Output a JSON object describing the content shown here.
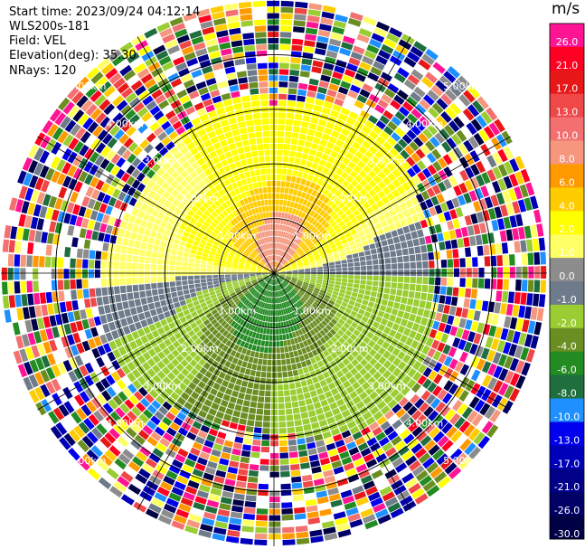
{
  "header": {
    "start_time": "Start time: 2023/09/24 04:12:14",
    "instrument": "WLS200s-181",
    "field": "Field: VEL",
    "elevation": "Elevation(deg): 35.30",
    "nrays": "NRays: 120"
  },
  "colorbar": {
    "unit": "m/s",
    "levels": [
      {
        "label": "26.0",
        "color": "#ff1493"
      },
      {
        "label": "21.0",
        "color": "#ff0022"
      },
      {
        "label": "17.0",
        "color": "#e81818"
      },
      {
        "label": "13.0",
        "color": "#f04848"
      },
      {
        "label": "10.0",
        "color": "#f47070"
      },
      {
        "label": "8.0",
        "color": "#f5967d"
      },
      {
        "label": "6.0",
        "color": "#ff9900"
      },
      {
        "label": "4.0",
        "color": "#ffcc00"
      },
      {
        "label": "2.0",
        "color": "#ffff00"
      },
      {
        "label": "1.0",
        "color": "#ffff66"
      },
      {
        "label": "0.0",
        "color": "#8c8c8c"
      },
      {
        "label": "-1.0",
        "color": "#6e7b8b"
      },
      {
        "label": "-2.0",
        "color": "#9acd32"
      },
      {
        "label": "-4.0",
        "color": "#6b8e23"
      },
      {
        "label": "-6.0",
        "color": "#228b22"
      },
      {
        "label": "-8.0",
        "color": "#1e6e3e"
      },
      {
        "label": "-10.0",
        "color": "#1e90ff"
      },
      {
        "label": "-13.0",
        "color": "#0000ee"
      },
      {
        "label": "-17.0",
        "color": "#0000bb"
      },
      {
        "label": "-21.0",
        "color": "#000088"
      },
      {
        "label": "-26.0",
        "color": "#000066"
      },
      {
        "label": "-30.0",
        "color": "#000044"
      }
    ]
  },
  "chart_data": {
    "type": "heatmap",
    "projection": "polar PPI",
    "field": "VEL",
    "n_rays": 120,
    "range_rings_km": [
      1.0,
      2.0,
      3.0,
      4.0
    ],
    "ring_labels": [
      "1.00km",
      "2.00km",
      "3.00km",
      "4.00km",
      "5.00km"
    ],
    "max_range_km": 5.0,
    "azimuth_spokes_deg": [
      0,
      30,
      60,
      90,
      120,
      150,
      180,
      210,
      240,
      270,
      300,
      330
    ],
    "grid": true,
    "notes_fields": {
      "coherent_core_radius_km": 3.1,
      "pattern": "positive velocities (yellow/orange) to the north, negative (green) to the south, gray near zero line east-west; noisy random colors beyond ~3.2 km"
    }
  }
}
